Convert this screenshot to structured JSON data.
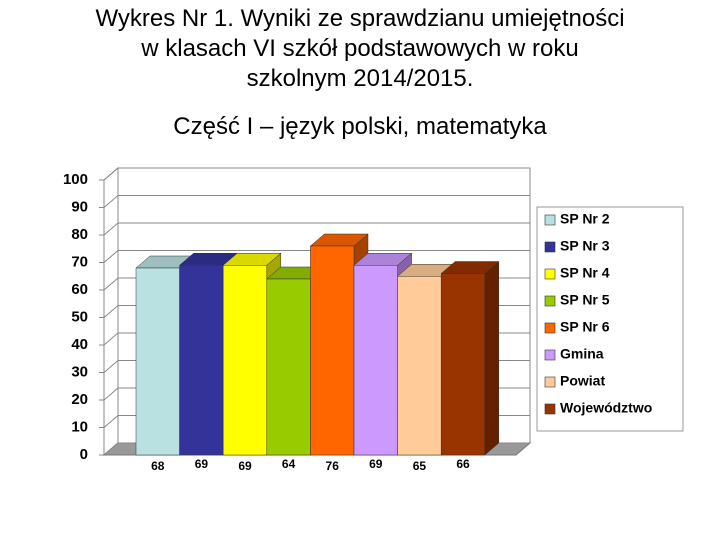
{
  "chart_data": {
    "type": "bar3d",
    "title": [
      "Wykres Nr 1. Wyniki ze sprawdzianu umiejętności",
      "w klasach VI szkół podstawowych w roku",
      "szkolnym 2014/2015."
    ],
    "subtitle": "Część I – język polski, matematyka",
    "series": [
      {
        "name": "SP Nr 2",
        "color": "#b9e1e1",
        "values": [
          68
        ]
      },
      {
        "name": "SP Nr 3",
        "color": "#333399",
        "values": [
          69
        ]
      },
      {
        "name": "SP Nr 4",
        "color": "#ffff00",
        "values": [
          69
        ]
      },
      {
        "name": "SP Nr 5",
        "color": "#99cc00",
        "values": [
          64
        ]
      },
      {
        "name": "SP Nr 6",
        "color": "#ff6600",
        "values": [
          76
        ]
      },
      {
        "name": "Gmina",
        "color": "#cc99ff",
        "values": [
          69
        ]
      },
      {
        "name": "Powiat",
        "color": "#ffcc99",
        "values": [
          65
        ]
      },
      {
        "name": "Województwo",
        "color": "#993300",
        "values": [
          66
        ]
      }
    ],
    "ylim": [
      0,
      100
    ],
    "yticks": [
      0,
      10,
      20,
      30,
      40,
      50,
      60,
      70,
      80,
      90,
      100
    ],
    "grid": true,
    "legend": "right"
  }
}
